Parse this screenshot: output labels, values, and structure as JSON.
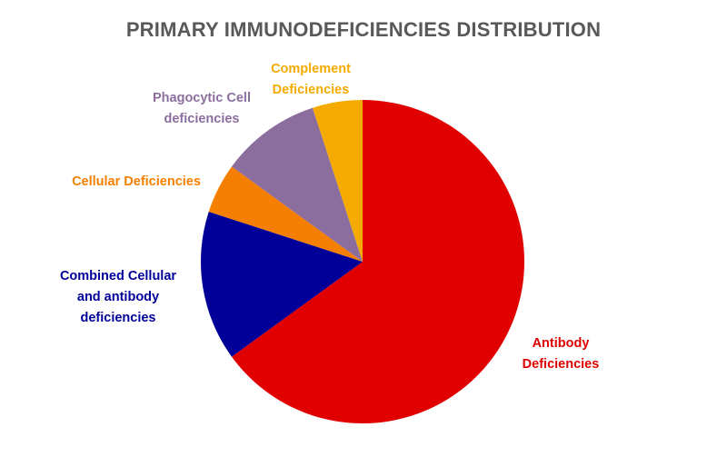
{
  "chart_data": {
    "type": "pie",
    "title": "PRIMARY IMMUNODEFICIENCIES DISTRIBUTION",
    "start_angle_deg": 0,
    "direction": "clockwise",
    "slices": [
      {
        "label": "Antibody Deficiencies",
        "label_lines": [
          "Antibody",
          "Deficiencies"
        ],
        "value": 65,
        "color": "#e00000"
      },
      {
        "label": "Combined Cellular and antibody deficiencies",
        "label_lines": [
          "Combined Cellular",
          "and antibody",
          "deficiencies"
        ],
        "value": 15,
        "color": "#000099"
      },
      {
        "label": "Cellular Deficiencies",
        "label_lines": [
          "Cellular Deficiencies"
        ],
        "value": 5,
        "color": "#f57f00"
      },
      {
        "label": "Phagocytic Cell deficiencies",
        "label_lines": [
          "Phagocytic Cell",
          "deficiencies"
        ],
        "value": 10,
        "color": "#8c6e9e"
      },
      {
        "label": "Complement Deficiencies",
        "label_lines": [
          "Complement",
          "Deficiencies"
        ],
        "value": 5,
        "color": "#f5aa00"
      }
    ]
  }
}
